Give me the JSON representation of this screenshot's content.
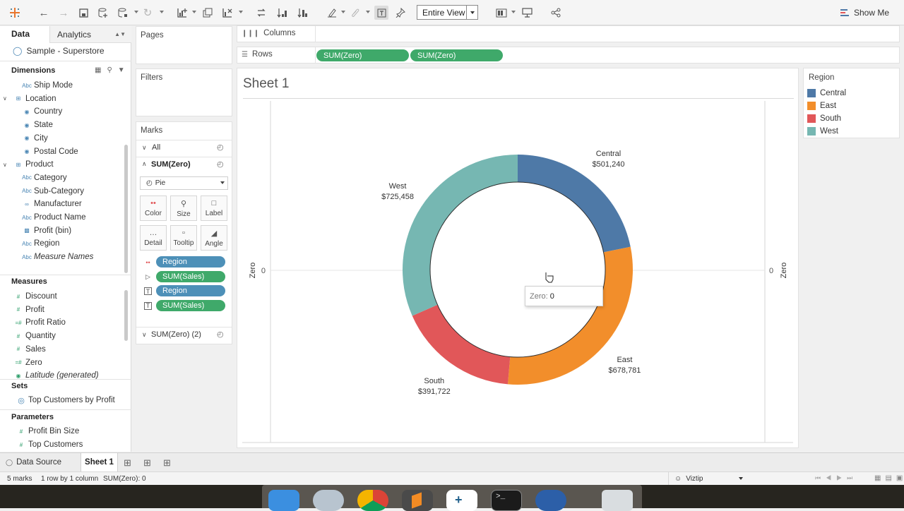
{
  "toolbar": {
    "fit_value": "Entire View",
    "show_me_label": "Show Me"
  },
  "data_pane": {
    "tabs": [
      {
        "label": "Data"
      },
      {
        "label": "Analytics"
      }
    ],
    "data_source": "Sample - Superstore",
    "dimensions_header": "Dimensions",
    "dimensions": [
      {
        "label": "Ship Mode",
        "icon": "Abc"
      },
      {
        "label": "Location",
        "icon": "hierarchy-icon"
      },
      {
        "label": "Country",
        "icon": "globe-icon"
      },
      {
        "label": "State",
        "icon": "globe-icon"
      },
      {
        "label": "City",
        "icon": "globe-icon"
      },
      {
        "label": "Postal Code",
        "icon": "globe-icon"
      },
      {
        "label": "Product",
        "icon": "hierarchy-icon"
      },
      {
        "label": "Category",
        "icon": "Abc"
      },
      {
        "label": "Sub-Category",
        "icon": "Abc"
      },
      {
        "label": "Manufacturer",
        "icon": "link-icon"
      },
      {
        "label": "Product Name",
        "icon": "Abc"
      },
      {
        "label": "Profit (bin)",
        "icon": "bin-icon"
      },
      {
        "label": "Region",
        "icon": "Abc"
      },
      {
        "label": "Measure Names",
        "icon": "Abc"
      }
    ],
    "measures_header": "Measures",
    "measures": [
      {
        "label": "Discount",
        "icon": "#"
      },
      {
        "label": "Profit",
        "icon": "#"
      },
      {
        "label": "Profit Ratio",
        "icon": "=#"
      },
      {
        "label": "Quantity",
        "icon": "#"
      },
      {
        "label": "Sales",
        "icon": "#"
      },
      {
        "label": "Zero",
        "icon": "=#"
      },
      {
        "label": "Latitude (generated)",
        "icon": "globe-icon"
      }
    ],
    "sets_header": "Sets",
    "sets": [
      {
        "label": "Top Customers by Profit"
      }
    ],
    "parameters_header": "Parameters",
    "parameters": [
      {
        "label": "Profit Bin Size"
      },
      {
        "label": "Top Customers"
      }
    ]
  },
  "pages_label": "Pages",
  "filters_label": "Filters",
  "marks": {
    "header": "Marks",
    "all_label": "All",
    "card_label": "SUM(Zero)",
    "mark_type": "Pie",
    "buttons": [
      {
        "label": "Color"
      },
      {
        "label": "Size"
      },
      {
        "label": "Label"
      },
      {
        "label": "Detail"
      },
      {
        "label": "Tooltip"
      },
      {
        "label": "Angle"
      }
    ],
    "pills": [
      {
        "label": "Region"
      },
      {
        "label": "SUM(Sales)"
      },
      {
        "label": "Region"
      },
      {
        "label": "SUM(Sales)"
      }
    ],
    "card2_label": "SUM(Zero) (2)"
  },
  "shelves": {
    "columns_label": "Columns",
    "rows_label": "Rows",
    "rows_pills": [
      {
        "label": "SUM(Zero)"
      },
      {
        "label": "SUM(Zero)"
      }
    ]
  },
  "sheet_title": "Sheet 1",
  "chart_data": {
    "type": "pie",
    "categories": [
      "Central",
      "East",
      "South",
      "West"
    ],
    "values": [
      501240,
      678781,
      391722,
      725458
    ],
    "value_labels": [
      "$501,240",
      "$678,781",
      "$391,722",
      "$725,458"
    ],
    "colors": [
      "#4e79a7",
      "#f28e2b",
      "#e15759",
      "#76b7b2"
    ],
    "axis_title": "Zero",
    "axis_tick": "0",
    "title": "Sheet 1"
  },
  "legend": {
    "title": "Region",
    "items": [
      {
        "label": "Central",
        "color": "#4e79a7"
      },
      {
        "label": "East",
        "color": "#f28e2b"
      },
      {
        "label": "South",
        "color": "#e15759"
      },
      {
        "label": "West",
        "color": "#76b7b2"
      }
    ]
  },
  "tooltip": {
    "label": "Zero:",
    "value": "0"
  },
  "tabs_bar": {
    "data_source": "Data Source",
    "sheet": "Sheet 1"
  },
  "status": {
    "marks": "5 marks",
    "rows": "1 row by 1 column",
    "sum": "SUM(Zero): 0",
    "user": "Viztip"
  }
}
